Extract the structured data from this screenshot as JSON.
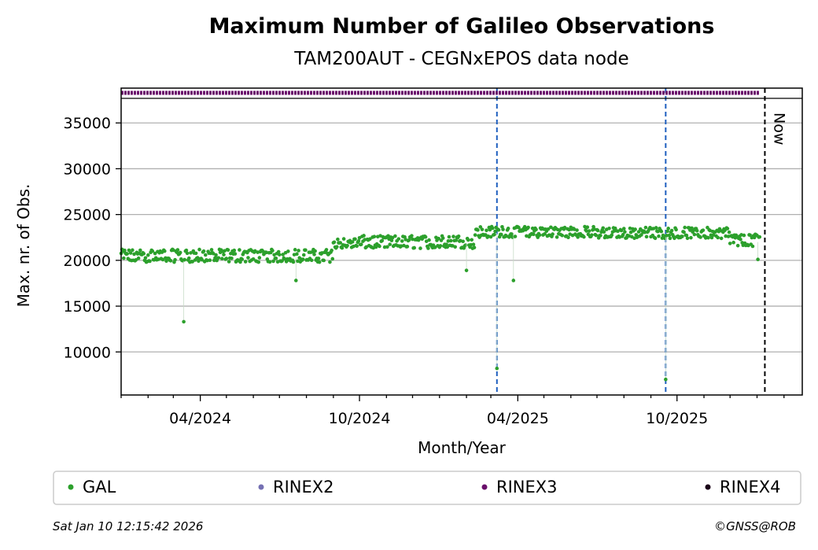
{
  "chart_data": {
    "type": "scatter",
    "title": "Maximum Number of Galileo Observations",
    "subtitle": "TAM200AUT - CEGNxEPOS data node",
    "xlabel": "Month/Year",
    "ylabel": "Max. nr. of Obs.",
    "x_start": "2024-01-01",
    "x_end": "2026-02-22",
    "ylim": [
      5300,
      38800
    ],
    "yticks": [
      10000,
      15000,
      20000,
      25000,
      30000,
      35000
    ],
    "xticks": [
      {
        "date": "2024-04-01",
        "label": "04/2024"
      },
      {
        "date": "2024-10-01",
        "label": "10/2024"
      },
      {
        "date": "2025-04-01",
        "label": "04/2025"
      },
      {
        "date": "2025-10-01",
        "label": "10/2025"
      }
    ],
    "grid": "horizontal",
    "now_marker": {
      "date": "2026-01-10",
      "label": "Now"
    },
    "event_lines": [
      "2025-03-08",
      "2025-09-18"
    ],
    "series": [
      {
        "name": "GAL",
        "color": "#2ca02c",
        "range_start": "2024-01-01",
        "range_end": "2026-01-04",
        "segments": [
          {
            "start": "2024-01-01",
            "end": "2024-08-31",
            "low": 19800,
            "high": 21200
          },
          {
            "start": "2024-09-01",
            "end": "2024-09-30",
            "low": 21300,
            "high": 22400
          },
          {
            "start": "2024-10-01",
            "end": "2025-02-10",
            "low": 21300,
            "high": 22700
          },
          {
            "start": "2025-02-11",
            "end": "2025-06-30",
            "low": 22500,
            "high": 23700
          },
          {
            "start": "2025-07-01",
            "end": "2025-11-30",
            "low": 22400,
            "high": 23600
          },
          {
            "start": "2025-12-01",
            "end": "2026-01-04",
            "low": 21500,
            "high": 22900
          }
        ],
        "outliers": [
          {
            "date": "2024-03-13",
            "value": 13300
          },
          {
            "date": "2024-07-20",
            "value": 17800
          },
          {
            "date": "2025-03-08",
            "value": 8200
          },
          {
            "date": "2025-03-27",
            "value": 17800
          },
          {
            "date": "2025-09-18",
            "value": 7000
          },
          {
            "date": "2025-02-01",
            "value": 18900
          },
          {
            "date": "2026-01-02",
            "value": 20100
          }
        ]
      },
      {
        "name": "RINEX2",
        "color": "#7570b3",
        "range_start": null,
        "range_end": null
      },
      {
        "name": "RINEX3",
        "color": "#6a0f6b",
        "range_start": "2024-01-01",
        "range_end": "2026-01-04"
      },
      {
        "name": "RINEX4",
        "color": "#1a0018",
        "range_start": null,
        "range_end": null
      }
    ]
  },
  "footer": {
    "timestamp": "Sat Jan 10 12:15:42 2026",
    "copyright": "©GNSS@ROB"
  }
}
